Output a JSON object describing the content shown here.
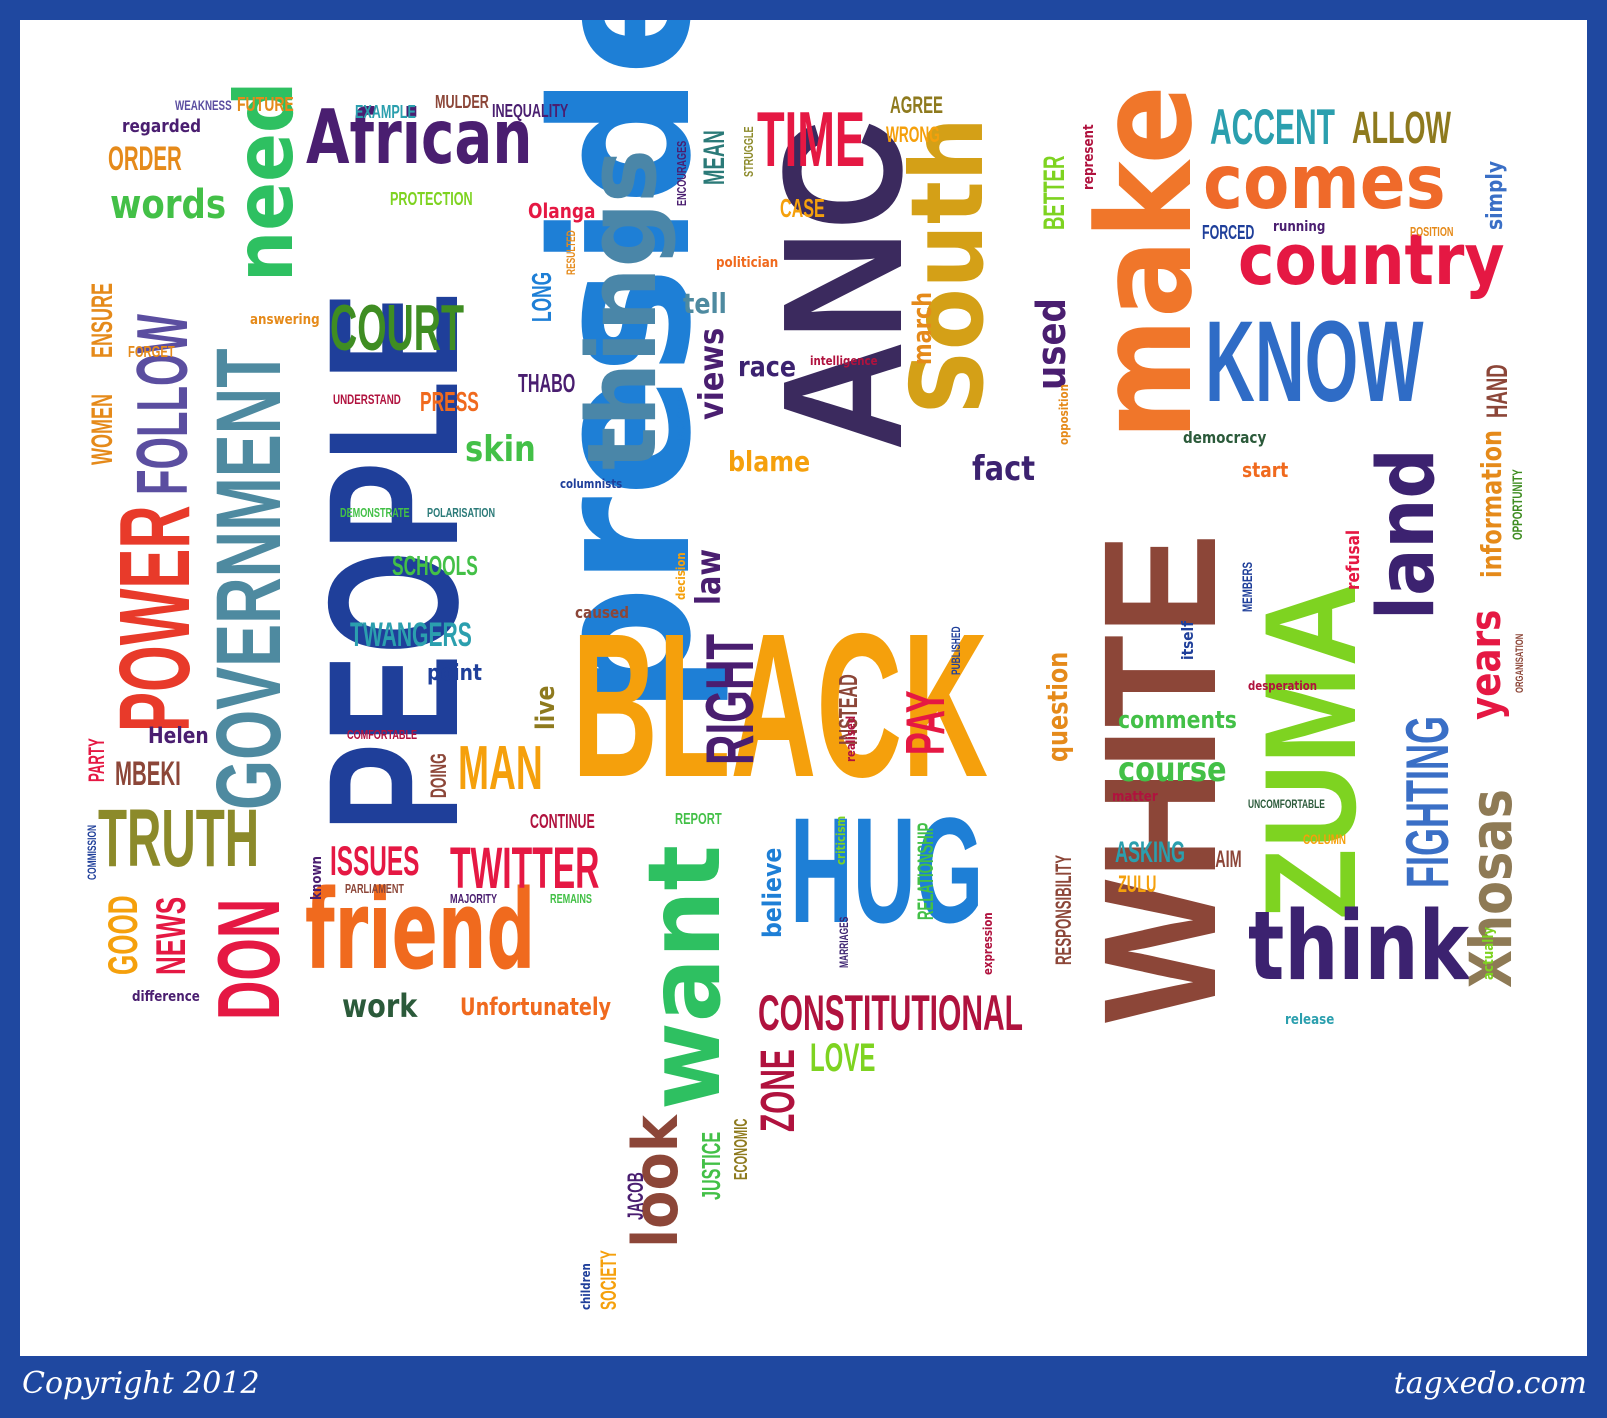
{
  "footer": {
    "copyright": "Copyright 2012",
    "site": "tagxedo.com"
  },
  "colors": {
    "frame": "#1f48a0",
    "background": "#ffffff",
    "blue": "#1e7fd6",
    "orange": "#f5a00c",
    "purple": "#3c2270",
    "green": "#43c047",
    "red": "#e51843",
    "brown": "#8c4638",
    "teal": "#3a9fa3"
  },
  "words": {
    "president": "president",
    "black": "BLACK",
    "people": "PEOPLE",
    "anc": "ANC",
    "white": "WHITE",
    "hug": "HUG",
    "make": "make",
    "know": "KNOW",
    "zuma": "ZUMA",
    "things": "things",
    "south": "South",
    "want": "want",
    "friend": "friend",
    "government": "GOVERNMENT",
    "power": "POWER",
    "follow": "FOLLOW",
    "need": "need",
    "african": "African",
    "comes": "comes",
    "country": "country",
    "accent": "ACCENT",
    "allow": "ALLOW",
    "time": "TIME",
    "court": "COURT",
    "truth": "TRUTH",
    "don": "DON",
    "think": "think",
    "land": "land",
    "fighting": "FIGHTING",
    "xhosas": "Xhosas",
    "years": "years",
    "information": "information",
    "constitutional": "CONSTITUTIONAL",
    "twitter": "TWITTER",
    "issues": "ISSUES",
    "right": "RIGHT",
    "man": "MAN",
    "pay": "PAY",
    "look": "look",
    "zone": "ZONE",
    "love": "LOVE",
    "course": "course",
    "comments": "comments",
    "question": "question",
    "asking": "ASKING",
    "claim": "CLAIM",
    "zulu": "ZULU",
    "responsibility": "RESPONSIBILITY",
    "relationship": "RELATIONSHIP",
    "believe": "believe",
    "news": "NEWS",
    "good": "GOOD",
    "mbeki": "MBEKI",
    "helen": "Helen",
    "party": "PARTY",
    "commission": "COMMISSION",
    "women": "WOMEN",
    "ensure": "ENSURE",
    "forget": "FORGET",
    "answering": "answering",
    "order": "ORDER",
    "regarded": "regarded",
    "weakness": "WEAKNESS",
    "future": "FUTURE",
    "words": "words",
    "example": "EXAMPLE",
    "mulder": "MULDER",
    "inequality": "INEQUALITY",
    "protection": "PROTECTION",
    "encourages": "ENCOURAGES",
    "mean": "MEAN",
    "struggle": "STRUGGLE",
    "agree": "AGREE",
    "wrong": "WRONG",
    "case": "CASE",
    "olanga": "Olanga",
    "resulted": "RESULTED",
    "long": "LONG",
    "politician": "politician",
    "tell": "tell",
    "views": "views",
    "race": "race",
    "intelligence": "intelligence",
    "march": "march",
    "thabo": "THABO",
    "rejected": "REJECTED",
    "blame": "blame",
    "fact": "fact",
    "skin": "skin",
    "columnists": "columnists",
    "demonstrate": "DEMONSTRATE",
    "polarisation": "POLARISATION",
    "schools": "SCHOOLS",
    "twangers": "TWANGERS",
    "point": "point",
    "understand": "UNDERSTAND",
    "press": "PRESS",
    "caused": "caused",
    "decision": "decision",
    "law": "law",
    "live": "live",
    "published": "PUBLISHED",
    "instead": "INSTEAD",
    "realised": "realised",
    "comfortable": "COMFORTABLE",
    "doing": "DOING",
    "continue": "CONTINUE",
    "report": "REPORT",
    "criticism": "criticism",
    "parliament": "PARLIAMENT",
    "majority": "MAJORITY",
    "remains": "REMAINS",
    "known": "known",
    "work": "work",
    "unfortunately": "Unfortunately",
    "difference": "difference",
    "marriages": "MARRIAGES",
    "expression": "expression",
    "justice": "JUSTICE",
    "economic": "ECONOMIC",
    "jacob": "JACOB",
    "society": "SOCIETY",
    "children": "children",
    "used": "used",
    "better": "BETTER",
    "represent": "represent",
    "opposition": "opposition",
    "forced": "FORCED",
    "running": "running",
    "position": "POSITION",
    "simply": "simply",
    "hand": "HAND",
    "democracy": "democracy",
    "start": "start",
    "opportunity": "OPPORTUNITY",
    "refusal": "refusal",
    "members": "MEMBERS",
    "itself": "itself",
    "desperation": "desperation",
    "organisation": "ORGANISATION",
    "matter": "matter",
    "uncomfortable": "UNCOMFORTABLE",
    "column": "COLUMN",
    "actually": "actually",
    "release": "release"
  }
}
